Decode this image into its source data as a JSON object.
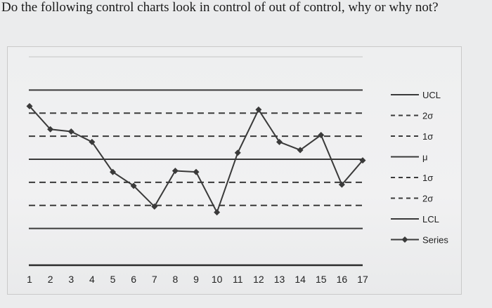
{
  "question": "Do the following control charts look in control of out of control, why or why not?",
  "chart_data": {
    "type": "line",
    "title": "",
    "xlabel": "",
    "ylabel": "",
    "categories": [
      "1",
      "2",
      "3",
      "4",
      "5",
      "6",
      "7",
      "8",
      "9",
      "10",
      "11",
      "12",
      "13",
      "14",
      "15",
      "16",
      "17"
    ],
    "series": [
      {
        "name": "Series",
        "values": [
          2.3,
          1.3,
          1.2,
          0.75,
          -0.55,
          -1.15,
          -2.05,
          -0.5,
          -0.55,
          -2.3,
          0.28,
          2.15,
          0.75,
          0.4,
          1.05,
          -1.1,
          -0.05
        ]
      }
    ],
    "control_lines": [
      {
        "name": "UCL",
        "value": 3,
        "style": "solid"
      },
      {
        "name": "2σ",
        "value": 2,
        "style": "dashed"
      },
      {
        "name": "1σ",
        "value": 1,
        "style": "dashed"
      },
      {
        "name": "μ",
        "value": 0,
        "style": "solid"
      },
      {
        "name": "1σ",
        "value": -1,
        "style": "dashed"
      },
      {
        "name": "2σ",
        "value": -2,
        "style": "dashed"
      },
      {
        "name": "LCL",
        "value": -3,
        "style": "solid"
      }
    ],
    "ylim": [
      -4.5,
      4.5
    ],
    "grid": false,
    "legend_position": "right",
    "line_color": "#3a3a3a"
  }
}
